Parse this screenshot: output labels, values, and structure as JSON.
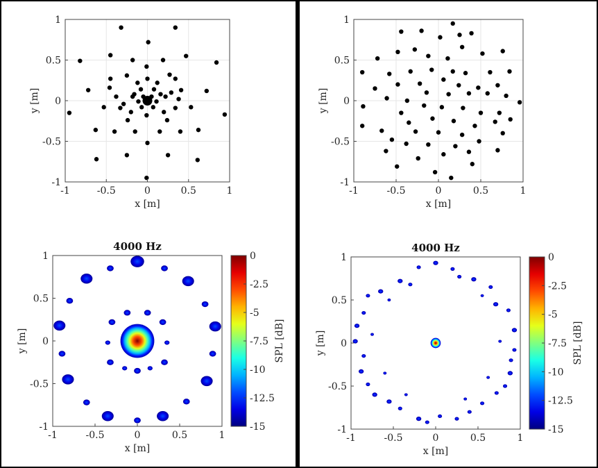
{
  "chart_data": [
    {
      "type": "scatter",
      "title": "",
      "xlabel": "x [m]",
      "ylabel": "y [m]",
      "xlim": [
        -1,
        1
      ],
      "ylim": [
        -1,
        1
      ],
      "xticks": [
        "-1",
        "-0.5",
        "0",
        "0.5",
        "1"
      ],
      "yticks": [
        "1",
        "0.5",
        "0",
        "-0.5",
        "-1"
      ],
      "grid": true,
      "marker_color": "#000000",
      "points": [
        [
          0,
          0,
          "big"
        ],
        [
          -0.32,
          0.9
        ],
        [
          0.34,
          0.9
        ],
        [
          0.01,
          0.72
        ],
        [
          -0.82,
          0.49
        ],
        [
          0.84,
          0.47
        ],
        [
          -0.45,
          0.56
        ],
        [
          0.47,
          0.55
        ],
        [
          -0.18,
          0.5
        ],
        [
          0.19,
          0.5
        ],
        [
          -0.01,
          0.42
        ],
        [
          -0.45,
          0.27
        ],
        [
          0.27,
          0.32
        ],
        [
          -0.25,
          0.31
        ],
        [
          0.0,
          0.27
        ],
        [
          -0.12,
          0.22
        ],
        [
          0.12,
          0.22
        ],
        [
          -0.08,
          0.14
        ],
        [
          0.08,
          0.14
        ],
        [
          -0.16,
          0.08
        ],
        [
          0.16,
          0.08
        ],
        [
          -0.05,
          0.05
        ],
        [
          0.05,
          0.05
        ],
        [
          -0.11,
          -0.01
        ],
        [
          0.11,
          -0.01
        ],
        [
          -0.07,
          -0.08
        ],
        [
          0.07,
          -0.08
        ],
        [
          -0.18,
          0.05
        ],
        [
          0.22,
          0.05
        ],
        [
          0.34,
          0.27
        ],
        [
          0.41,
          0.13
        ],
        [
          -0.72,
          0.13
        ],
        [
          0.72,
          0.12
        ],
        [
          -0.53,
          -0.08
        ],
        [
          0.53,
          -0.08
        ],
        [
          -0.95,
          -0.15
        ],
        [
          0.94,
          -0.17
        ],
        [
          -0.33,
          -0.09
        ],
        [
          0.34,
          -0.09
        ],
        [
          -0.2,
          -0.14
        ],
        [
          0.2,
          -0.14
        ],
        [
          -0.01,
          -0.18
        ],
        [
          -0.24,
          -0.24
        ],
        [
          0.24,
          -0.24
        ],
        [
          -0.4,
          -0.38
        ],
        [
          0.4,
          -0.38
        ],
        [
          -0.15,
          -0.38
        ],
        [
          0.15,
          -0.38
        ],
        [
          -0.63,
          -0.36
        ],
        [
          0.62,
          -0.36
        ],
        [
          0.0,
          -0.52
        ],
        [
          -0.25,
          -0.67
        ],
        [
          0.25,
          -0.67
        ],
        [
          -0.62,
          -0.72
        ],
        [
          0.61,
          -0.73
        ],
        [
          -0.01,
          -0.95
        ],
        [
          -0.38,
          0.05
        ],
        [
          0.38,
          0.02
        ],
        [
          -0.29,
          -0.04
        ],
        [
          0.29,
          0.1
        ],
        [
          -0.46,
          0.16
        ]
      ]
    },
    {
      "type": "scatter",
      "title": "",
      "xlabel": "x [m]",
      "ylabel": "y [m]",
      "xlim": [
        -1,
        1
      ],
      "ylim": [
        -1,
        1
      ],
      "xticks": [
        "-1",
        "-0.5",
        "0",
        "0.5",
        "1"
      ],
      "yticks": [
        "1",
        "0.5",
        "0",
        "-0.5",
        "-1"
      ],
      "grid": true,
      "marker_color": "#000000",
      "points": [
        [
          0.17,
          0.95
        ],
        [
          -0.44,
          0.85
        ],
        [
          -0.2,
          0.86
        ],
        [
          0.02,
          0.78
        ],
        [
          0.25,
          0.81
        ],
        [
          0.39,
          0.83
        ],
        [
          -0.28,
          0.63
        ],
        [
          -0.48,
          0.6
        ],
        [
          -0.72,
          0.52
        ],
        [
          -0.12,
          0.55
        ],
        [
          0.11,
          0.52
        ],
        [
          0.28,
          0.66
        ],
        [
          0.52,
          0.58
        ],
        [
          0.76,
          0.61
        ],
        [
          -0.9,
          0.35
        ],
        [
          -0.58,
          0.33
        ],
        [
          -0.33,
          0.36
        ],
        [
          -0.08,
          0.38
        ],
        [
          0.17,
          0.36
        ],
        [
          0.32,
          0.34
        ],
        [
          0.61,
          0.35
        ],
        [
          0.84,
          0.36
        ],
        [
          -0.75,
          0.15
        ],
        [
          -0.48,
          0.2
        ],
        [
          -0.22,
          0.21
        ],
        [
          0.06,
          0.26
        ],
        [
          0.24,
          0.19
        ],
        [
          0.47,
          0.16
        ],
        [
          0.7,
          0.19
        ],
        [
          -0.61,
          0.03
        ],
        [
          -0.37,
          0.0
        ],
        [
          -0.14,
          0.1
        ],
        [
          0.12,
          0.08
        ],
        [
          0.36,
          0.09
        ],
        [
          0.58,
          0.09
        ],
        [
          0.8,
          0.06
        ],
        [
          0.96,
          -0.02
        ],
        [
          -0.89,
          -0.07
        ],
        [
          -0.44,
          -0.15
        ],
        [
          -0.17,
          -0.06
        ],
        [
          0.04,
          -0.08
        ],
        [
          0.29,
          -0.09
        ],
        [
          0.5,
          -0.15
        ],
        [
          0.72,
          -0.15
        ],
        [
          -0.9,
          -0.31
        ],
        [
          -0.67,
          -0.37
        ],
        [
          -0.35,
          -0.27
        ],
        [
          -0.07,
          -0.22
        ],
        [
          0.18,
          -0.25
        ],
        [
          0.43,
          -0.31
        ],
        [
          0.67,
          -0.26
        ],
        [
          0.85,
          -0.23
        ],
        [
          -0.55,
          -0.48
        ],
        [
          -0.27,
          -0.38
        ],
        [
          0.0,
          -0.39
        ],
        [
          0.28,
          -0.42
        ],
        [
          0.48,
          -0.5
        ],
        [
          0.76,
          -0.4
        ],
        [
          -0.62,
          -0.62
        ],
        [
          -0.38,
          -0.53
        ],
        [
          -0.12,
          -0.54
        ],
        [
          0.06,
          -0.66
        ],
        [
          0.36,
          -0.63
        ],
        [
          0.7,
          -0.61
        ],
        [
          -0.49,
          -0.81
        ],
        [
          -0.24,
          -0.71
        ],
        [
          -0.04,
          -0.88
        ],
        [
          0.15,
          -0.95
        ],
        [
          0.4,
          -0.78
        ],
        [
          0.2,
          -0.56
        ]
      ]
    },
    {
      "type": "heatmap",
      "title": "4000 Hz",
      "xlabel": "x [m]",
      "ylabel": "y [m]",
      "xlim": [
        -1,
        1
      ],
      "ylim": [
        -1,
        1
      ],
      "xticks": [
        "-1",
        "-0.5",
        "0",
        "0.5",
        "1"
      ],
      "yticks": [
        "1",
        "0.5",
        "0",
        "-0.5",
        "-1"
      ],
      "colorbar": {
        "label": "SPL [dB]",
        "range": [
          -15,
          0
        ],
        "ticks": [
          "0",
          "-2.5",
          "-5",
          "-7.5",
          "-10",
          "-12.5",
          "-15"
        ]
      },
      "blobs": [
        [
          0,
          0,
          0.2,
          "main"
        ],
        [
          0.0,
          0.93,
          0.08
        ],
        [
          -0.32,
          0.85,
          0.04
        ],
        [
          0.32,
          0.85,
          0.04
        ],
        [
          -0.6,
          0.73,
          0.07
        ],
        [
          0.6,
          0.7,
          0.07
        ],
        [
          -0.8,
          0.47,
          0.04
        ],
        [
          0.8,
          0.43,
          0.04
        ],
        [
          -0.92,
          0.18,
          0.07
        ],
        [
          0.92,
          0.17,
          0.07
        ],
        [
          -0.89,
          -0.15,
          0.04
        ],
        [
          0.89,
          -0.15,
          0.04
        ],
        [
          -0.82,
          -0.45,
          0.07
        ],
        [
          0.82,
          -0.47,
          0.07
        ],
        [
          -0.6,
          -0.72,
          0.04
        ],
        [
          0.58,
          -0.71,
          0.04
        ],
        [
          -0.35,
          -0.88,
          0.07
        ],
        [
          0.3,
          -0.88,
          0.07
        ],
        [
          0.0,
          -0.93,
          0.04
        ],
        [
          -0.12,
          0.33,
          0.04
        ],
        [
          0.12,
          0.33,
          0.04
        ],
        [
          -0.3,
          0.22,
          0.04
        ],
        [
          0.3,
          0.22,
          0.04
        ],
        [
          -0.35,
          -0.02,
          0.03
        ],
        [
          0.35,
          -0.02,
          0.03
        ],
        [
          -0.32,
          -0.25,
          0.04
        ],
        [
          0.32,
          -0.25,
          0.04
        ],
        [
          0.0,
          -0.35,
          0.04
        ],
        [
          -0.15,
          -0.32,
          0.03
        ],
        [
          0.15,
          -0.32,
          0.03
        ]
      ]
    },
    {
      "type": "heatmap",
      "title": "4000 Hz",
      "xlabel": "x [m]",
      "ylabel": "y [m]",
      "xlim": [
        -1,
        1
      ],
      "ylim": [
        -1,
        1
      ],
      "xticks": [
        "-1",
        "-0.5",
        "0",
        "0.5",
        "1"
      ],
      "yticks": [
        "1",
        "0.5",
        "0",
        "-0.5",
        "-1"
      ],
      "colorbar": {
        "label": "SPL [dB]",
        "range": [
          -15,
          0
        ],
        "ticks": [
          "0",
          "-2.5",
          "-5",
          "-7.5",
          "-10",
          "-12.5",
          "-15"
        ]
      },
      "blobs": [
        [
          0,
          0,
          0.06,
          "main"
        ],
        [
          0.0,
          0.93,
          0.03
        ],
        [
          -0.2,
          0.88,
          0.025
        ],
        [
          0.2,
          0.86,
          0.025
        ],
        [
          -0.42,
          0.72,
          0.03
        ],
        [
          0.45,
          0.74,
          0.03
        ],
        [
          0.28,
          0.77,
          0.025
        ],
        [
          -0.3,
          0.68,
          0.025
        ],
        [
          -0.65,
          0.6,
          0.03
        ],
        [
          0.65,
          0.65,
          0.025
        ],
        [
          -0.8,
          0.55,
          0.025
        ],
        [
          0.71,
          0.45,
          0.03
        ],
        [
          -0.85,
          0.35,
          0.025
        ],
        [
          0.86,
          0.38,
          0.025
        ],
        [
          -0.93,
          0.2,
          0.03
        ],
        [
          0.93,
          0.15,
          0.03
        ],
        [
          -0.95,
          0.02,
          0.03
        ],
        [
          0.93,
          -0.08,
          0.025
        ],
        [
          -0.85,
          -0.15,
          0.025
        ],
        [
          0.89,
          -0.2,
          0.025
        ],
        [
          -0.88,
          -0.33,
          0.03
        ],
        [
          0.88,
          -0.35,
          0.03
        ],
        [
          -0.8,
          -0.48,
          0.025
        ],
        [
          0.82,
          -0.5,
          0.025
        ],
        [
          -0.72,
          -0.6,
          0.03
        ],
        [
          0.72,
          -0.58,
          0.025
        ],
        [
          -0.55,
          -0.68,
          0.03
        ],
        [
          0.55,
          -0.7,
          0.025
        ],
        [
          -0.42,
          -0.76,
          0.025
        ],
        [
          0.4,
          -0.8,
          0.025
        ],
        [
          -0.2,
          -0.88,
          0.03
        ],
        [
          0.05,
          -0.85,
          0.025
        ],
        [
          0.25,
          -0.88,
          0.025
        ],
        [
          -0.1,
          -0.92,
          0.025
        ],
        [
          -0.55,
          0.5,
          0.02
        ],
        [
          0.55,
          0.55,
          0.02
        ],
        [
          -0.75,
          0.1,
          0.02
        ],
        [
          0.76,
          0.02,
          0.02
        ],
        [
          -0.6,
          -0.35,
          0.02
        ],
        [
          0.62,
          -0.4,
          0.02
        ],
        [
          -0.35,
          -0.6,
          0.02
        ],
        [
          0.35,
          -0.65,
          0.02
        ]
      ]
    }
  ]
}
